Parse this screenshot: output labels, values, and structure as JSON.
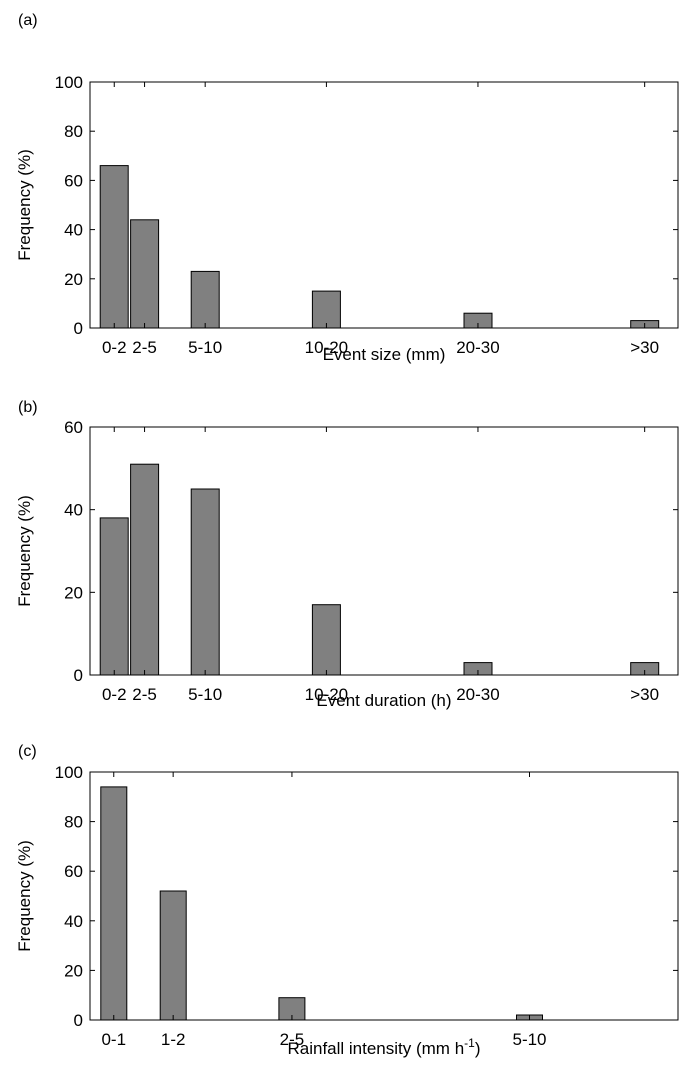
{
  "chart_data": [
    {
      "type": "bar",
      "panel_label": "(a)",
      "categories": [
        "0-2",
        "2-5",
        "5-10",
        "10-20",
        "20-30",
        ">30"
      ],
      "category_x": [
        1,
        2,
        4,
        8,
        13,
        18.5
      ],
      "xlim": [
        0.2,
        19.6
      ],
      "values": [
        66,
        44,
        23,
        15,
        6,
        3
      ],
      "ylim": [
        0,
        100
      ],
      "yticks": [
        0,
        20,
        40,
        60,
        80,
        100
      ],
      "xlabel": "Event size (mm)",
      "xlabel_sup": "",
      "xlabel_after": "",
      "ylabel": "Frequency (%)",
      "grid": false,
      "legend": "none",
      "bar_color": "#808080"
    },
    {
      "type": "bar",
      "panel_label": "(b)",
      "categories": [
        "0-2",
        "2-5",
        "5-10",
        "10-20",
        "20-30",
        ">30"
      ],
      "category_x": [
        1,
        2,
        4,
        8,
        13,
        18.5
      ],
      "xlim": [
        0.2,
        19.6
      ],
      "values": [
        38,
        51,
        45,
        17,
        3,
        3
      ],
      "ylim": [
        0,
        60
      ],
      "yticks": [
        0,
        20,
        40,
        60
      ],
      "xlabel": "Event duration (h)",
      "xlabel_sup": "",
      "xlabel_after": "",
      "ylabel": "Frequency (%)",
      "grid": false,
      "legend": "none",
      "bar_color": "#808080"
    },
    {
      "type": "bar",
      "panel_label": "(c)",
      "categories": [
        "0-1",
        "1-2",
        "2-5",
        "5-10"
      ],
      "category_x": [
        0.5,
        1.5,
        3.5,
        7.5
      ],
      "xlim": [
        0.1,
        10
      ],
      "values": [
        94,
        52,
        9,
        2
      ],
      "ylim": [
        0,
        100
      ],
      "yticks": [
        0,
        20,
        40,
        60,
        80,
        100
      ],
      "xlabel": "Rainfall intensity (mm h",
      "xlabel_sup": "-1",
      "xlabel_after": ")",
      "ylabel": "Frequency (%)",
      "grid": false,
      "legend": "none",
      "bar_color": "#808080"
    }
  ]
}
